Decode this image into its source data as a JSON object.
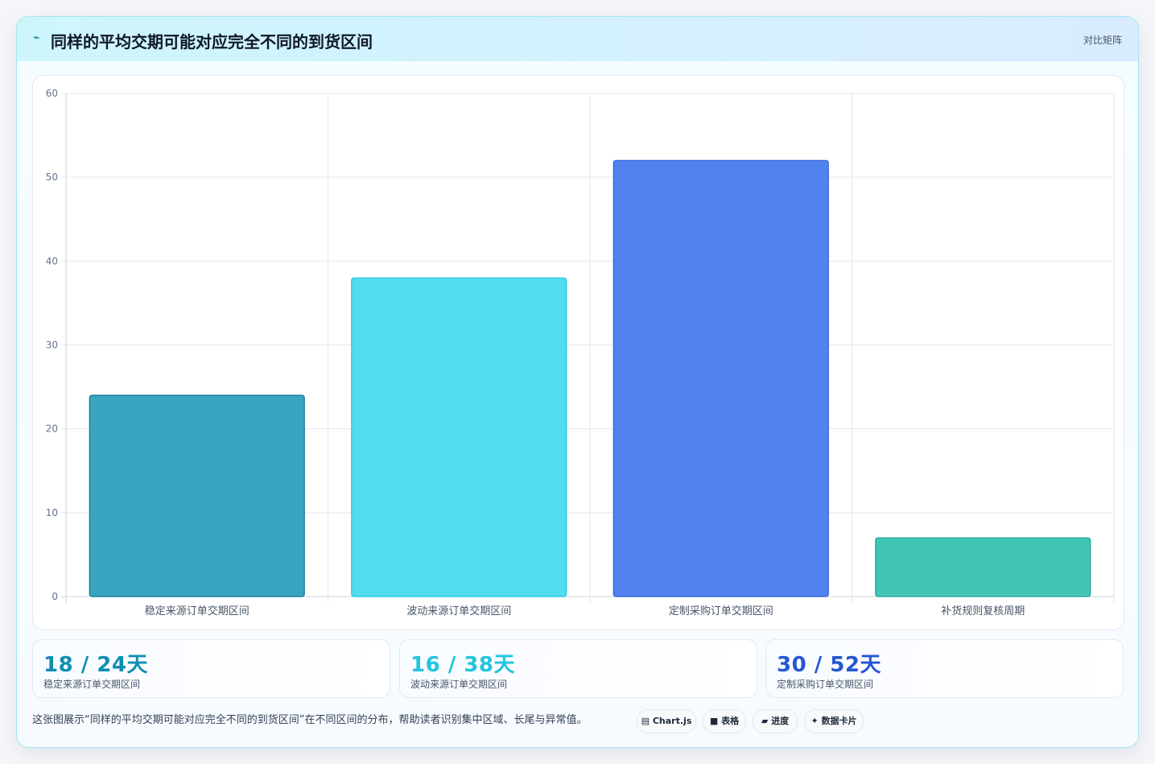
{
  "header": {
    "icon": "line-chart-icon",
    "title": "同样的平均交期可能对应完全不同的到货区间",
    "right_label": "对比矩阵"
  },
  "chart_data": {
    "type": "bar",
    "categories": [
      "稳定来源订单交期区间",
      "波动来源订单交期区间",
      "定制采购订单交期区间",
      "补货规则复核周期"
    ],
    "values": [
      24,
      38,
      52,
      7
    ],
    "ylim": [
      0,
      60
    ],
    "yticks": [
      0,
      10,
      20,
      30,
      40,
      50,
      60
    ],
    "grid": true,
    "colors": [
      {
        "fill": "#39a4c0",
        "stroke": "#0e7490"
      },
      {
        "fill": "#52dcef",
        "stroke": "#22c5de"
      },
      {
        "fill": "#5182ee",
        "stroke": "#2f5fd6"
      },
      {
        "fill": "#43c5b6",
        "stroke": "#1aa393"
      }
    ]
  },
  "stats": [
    {
      "value": "18 / 24天",
      "label": "稳定来源订单交期区间",
      "color": "#0e8fb0"
    },
    {
      "value": "16 / 38天",
      "label": "波动来源订单交期区间",
      "color": "#22c5de"
    },
    {
      "value": "30 / 52天",
      "label": "定制采购订单交期区间",
      "color": "#2456d3"
    }
  ],
  "footer": {
    "note": "这张图展示“同样的平均交期可能对应完全不同的到货区间”在不同区间的分布，帮助读者识别集中区域、长尾与异常值。",
    "chips": [
      {
        "icon": "chart-icon",
        "glyph": "▤",
        "label": "Chart.js"
      },
      {
        "icon": "table-icon",
        "glyph": "■",
        "label": "表格"
      },
      {
        "icon": "progress-icon",
        "glyph": "▰",
        "label": "进度"
      },
      {
        "icon": "sparkle-icon",
        "glyph": "✦",
        "label": "数据卡片"
      }
    ]
  }
}
